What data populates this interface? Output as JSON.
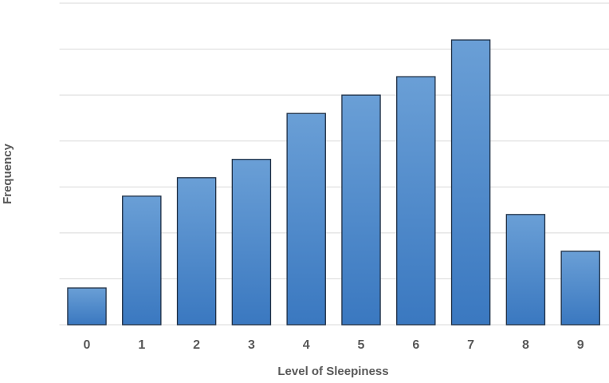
{
  "chart_data": {
    "type": "bar",
    "x_label": "Level of Sleepiness",
    "y_label": "Frequency",
    "categories": [
      "0",
      "1",
      "2",
      "3",
      "4",
      "5",
      "6",
      "7",
      "8",
      "9"
    ],
    "values": [
      4,
      14,
      16,
      18,
      23,
      25,
      27,
      31,
      12,
      8
    ],
    "color": "#4a87c8",
    "ylim": [
      0,
      35
    ],
    "yticks": [
      0,
      5,
      10,
      15,
      20,
      25,
      30,
      35
    ],
    "show_y_tick_labels": false,
    "grid": true
  }
}
